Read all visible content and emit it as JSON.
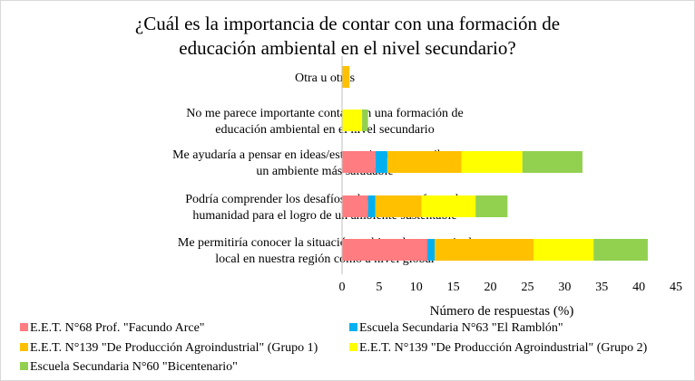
{
  "chart_data": {
    "type": "bar",
    "orientation": "horizontal",
    "stacked": true,
    "title_lines": [
      "¿Cuál es la importancia de contar con una formación de",
      "educación ambiental en el nivel secundario?"
    ],
    "xlabel": "Número de respuestas (%)",
    "xlim": [
      0,
      45
    ],
    "xticks": [
      "0",
      "5",
      "10",
      "15",
      "20",
      "25",
      "30",
      "35",
      "40",
      "45"
    ],
    "grid": false,
    "legend_position": "bottom",
    "categories": [
      [
        "Otra u otras"
      ],
      [
        "No me parece importante contar con una formación de",
        "educación ambiental en el nivel secundario"
      ],
      [
        "Me ayudaría a pensar en ideas/estrategias que contribuyan a",
        "un ambiente más saludable"
      ],
      [
        "Podría comprender los desafíos a los que se enfrenta la",
        "humanidad para el logro de un ambiente sustentable"
      ],
      [
        "Me permitiría conocer la situación ambiental tanto a nivel",
        "local en nuestra región como a nivel global"
      ]
    ],
    "series": [
      {
        "name": "E.E.T. N°68 Prof. \"Facundo Arce\"",
        "color": "#ff7c80",
        "values": [
          0,
          0,
          4.5,
          3.5,
          11.5
        ]
      },
      {
        "name": "Escuela Secundaria N°63 \"El Ramblón\"",
        "color": "#00b0f0",
        "values": [
          0,
          0,
          1.6,
          1.0,
          1.0
        ]
      },
      {
        "name": "E.E.T. N°139 \"De Producción Agroindustrial\" (Grupo 1)",
        "color": "#ffc000",
        "values": [
          1.0,
          0,
          10.0,
          6.2,
          13.3
        ]
      },
      {
        "name": "E.E.T. N°139 \"De Producción Agroindustrial\" (Grupo 2)",
        "color": "#ffff00",
        "values": [
          0,
          2.7,
          8.2,
          7.3,
          8.1
        ]
      },
      {
        "name": "Escuela Secundaria N°60 \"Bicentenario\"",
        "color": "#92d050",
        "values": [
          0,
          0.8,
          8.1,
          4.3,
          7.3
        ]
      }
    ]
  }
}
